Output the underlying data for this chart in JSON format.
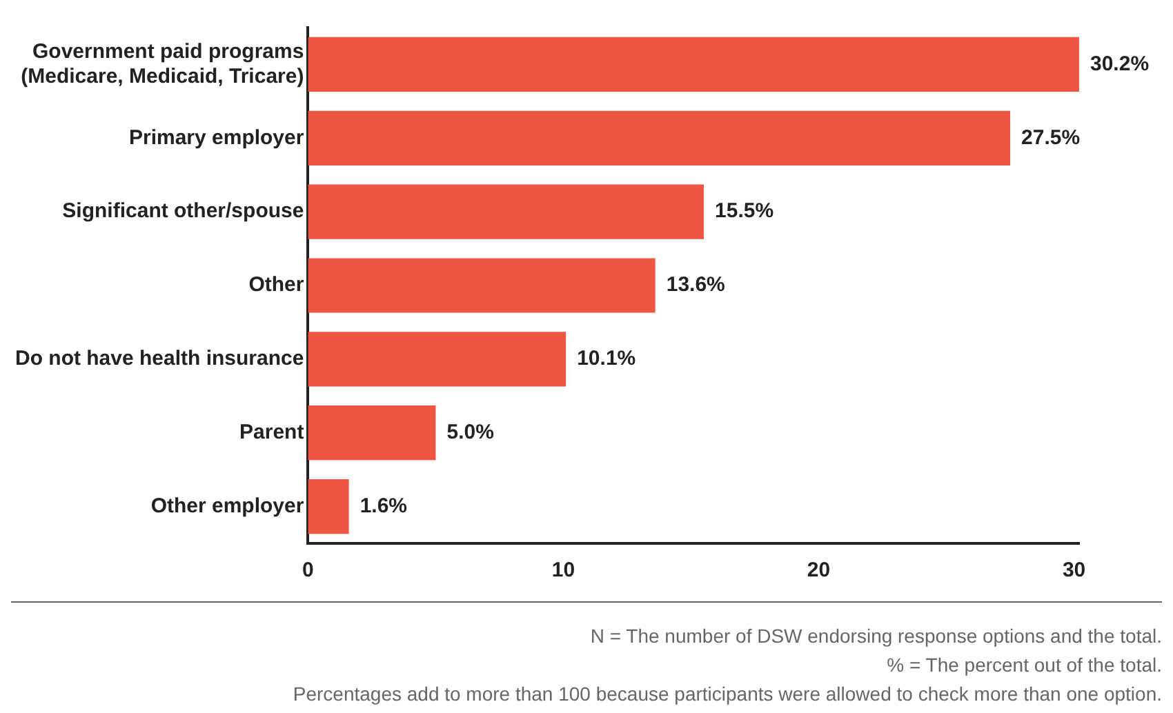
{
  "chart_data": {
    "type": "bar",
    "orientation": "horizontal",
    "categories": [
      "Government paid programs\n(Medicare, Medicaid, Tricare)",
      "Primary employer",
      "Significant other/spouse",
      "Other",
      "Do not have health insurance",
      "Parent",
      "Other employer"
    ],
    "values": [
      30.2,
      27.5,
      15.5,
      13.6,
      10.1,
      5.0,
      1.6
    ],
    "value_labels": [
      "30.2%",
      "27.5%",
      "15.5%",
      "13.6%",
      "10.1%",
      "5.0%",
      "1.6%"
    ],
    "color": "#ef5642",
    "xlim": [
      0,
      30.2
    ],
    "xticks": [
      0,
      10,
      20,
      30
    ],
    "grid": false,
    "annotations": [
      "N = The number of DSW endorsing response options and the total.",
      "% = The percent out of the total.",
      "Percentages add to more than 100 because participants were allowed to check more than one option."
    ]
  }
}
